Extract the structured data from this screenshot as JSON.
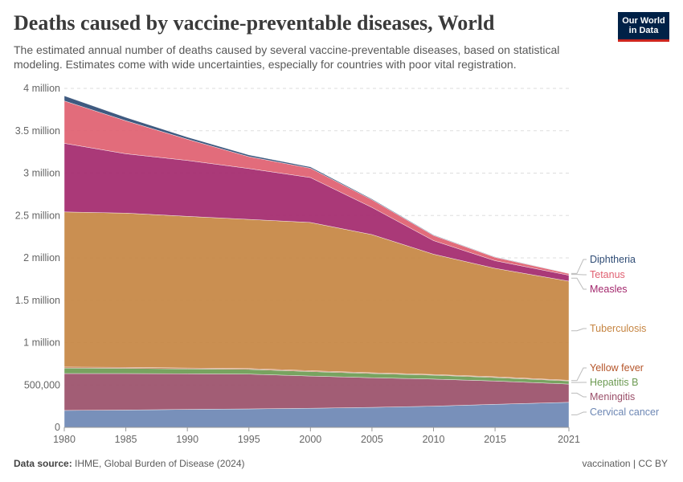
{
  "header": {
    "title": "Deaths caused by vaccine-preventable diseases, World",
    "subtitle": "The estimated annual number of deaths caused by several vaccine-preventable diseases, based on statistical modeling. Estimates come with wide uncertainties, especially for countries with poor vital registration.",
    "logo_line1": "Our World",
    "logo_line2": "in Data"
  },
  "footer": {
    "source_label": "Data source:",
    "source_text": "IHME, Global Burden of Disease (2024)",
    "right_text": "vaccination | CC BY"
  },
  "chart_data": {
    "type": "area",
    "stacked": true,
    "x": [
      1980,
      1985,
      1990,
      1995,
      2000,
      2005,
      2010,
      2015,
      2021
    ],
    "xlim": [
      1980,
      2021
    ],
    "ylim": [
      0,
      4000000
    ],
    "yticks": [
      0,
      500000,
      1000000,
      1500000,
      2000000,
      2500000,
      3000000,
      3500000,
      4000000
    ],
    "ytick_labels": [
      "0",
      "500,000",
      "1 million",
      "1.5 million",
      "2 million",
      "2.5 million",
      "3 million",
      "3.5 million",
      "4 million"
    ],
    "xticks": [
      1980,
      1985,
      1990,
      1995,
      2000,
      2005,
      2010,
      2015,
      2021
    ],
    "xtick_labels": [
      "1980",
      "1985",
      "1990",
      "1995",
      "2000",
      "2005",
      "2010",
      "2015",
      "2021"
    ],
    "grid": "horizontal dashed",
    "legend": "right, inline labels",
    "series": [
      {
        "name": "Cervical cancer",
        "color": "#6d87b4",
        "values": [
          200000,
          205000,
          212000,
          218000,
          226000,
          236000,
          250000,
          272000,
          296000
        ]
      },
      {
        "name": "Meningitis",
        "color": "#9a4f69",
        "values": [
          435000,
          430000,
          420000,
          410000,
          380000,
          350000,
          320000,
          275000,
          215000
        ]
      },
      {
        "name": "Hepatitis B",
        "color": "#6d9b53",
        "values": [
          65000,
          62000,
          58000,
          56000,
          53000,
          50000,
          46000,
          42000,
          37000
        ]
      },
      {
        "name": "Yellow fever",
        "color": "#b5552a",
        "values": [
          12000,
          11000,
          10000,
          10000,
          9000,
          9000,
          8000,
          8000,
          7000
        ]
      },
      {
        "name": "Tuberculosis",
        "color": "#c68542",
        "values": [
          1830000,
          1820000,
          1790000,
          1760000,
          1750000,
          1630000,
          1420000,
          1280000,
          1170000
        ]
      },
      {
        "name": "Measles",
        "color": "#a3286d",
        "values": [
          810000,
          700000,
          660000,
          600000,
          530000,
          320000,
          160000,
          90000,
          70000
        ]
      },
      {
        "name": "Tetanus",
        "color": "#e05f70",
        "values": [
          500000,
          390000,
          250000,
          140000,
          110000,
          90000,
          60000,
          40000,
          20000
        ]
      },
      {
        "name": "Diphtheria",
        "color": "#2f4c75",
        "values": [
          60000,
          40000,
          25000,
          20000,
          15000,
          10000,
          7000,
          5000,
          3000
        ]
      }
    ]
  }
}
